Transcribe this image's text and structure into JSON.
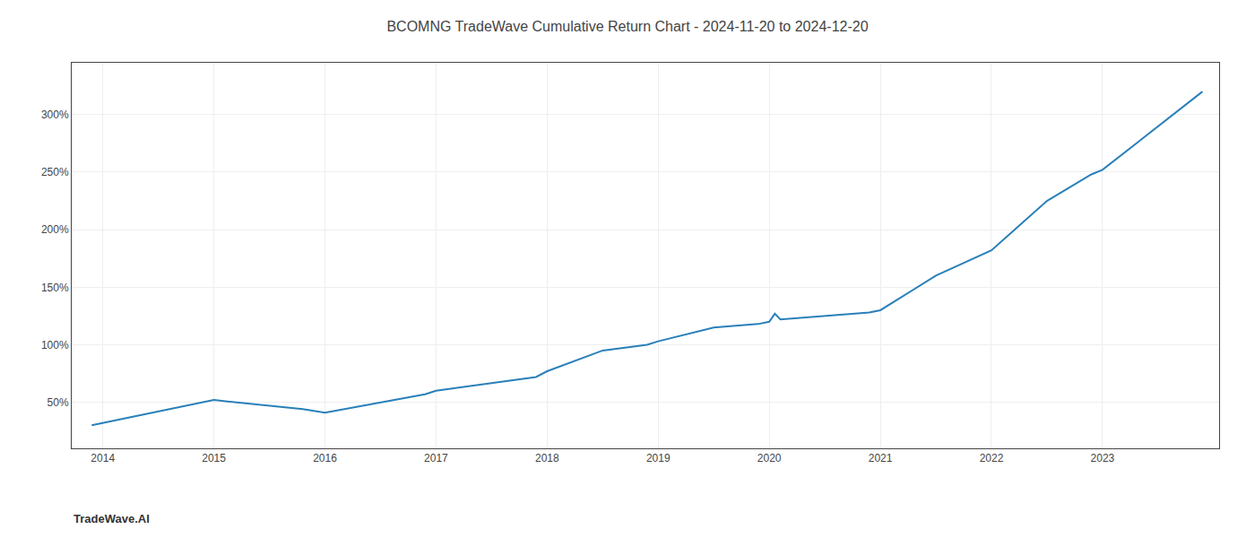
{
  "chart_data": {
    "type": "line",
    "title": "BCOMNG TradeWave Cumulative Return Chart - 2024-11-20 to 2024-12-20",
    "x": [
      2013.9,
      2014.0,
      2014.9,
      2015.0,
      2015.8,
      2016.0,
      2016.9,
      2017.0,
      2017.9,
      2018.0,
      2018.5,
      2018.9,
      2019.0,
      2019.5,
      2019.9,
      2020.0,
      2020.05,
      2020.1,
      2020.9,
      2021.0,
      2021.5,
      2021.9,
      2022.0,
      2022.5,
      2022.9,
      2023.0,
      2023.9
    ],
    "values": [
      30,
      32,
      50,
      52,
      44,
      41,
      57,
      60,
      72,
      77,
      95,
      100,
      103,
      115,
      118,
      120,
      127,
      122,
      128,
      130,
      160,
      178,
      182,
      225,
      248,
      252,
      320
    ],
    "color": "#2980b9",
    "xlim": [
      2013.72,
      2024.05
    ],
    "xticks": [
      2014,
      2015,
      2016,
      2017,
      2018,
      2019,
      2020,
      2021,
      2022,
      2023
    ],
    "ylim": [
      10,
      345
    ],
    "yticks": [
      {
        "value": 50,
        "label": "50%"
      },
      {
        "value": 100,
        "label": "100%"
      },
      {
        "value": 150,
        "label": "150%"
      },
      {
        "value": 200,
        "label": "200%"
      },
      {
        "value": 250,
        "label": "250%"
      },
      {
        "value": 300,
        "label": "300%"
      }
    ],
    "grid": true,
    "annotations": [
      {
        "text": "TradeWave.AI"
      }
    ]
  }
}
